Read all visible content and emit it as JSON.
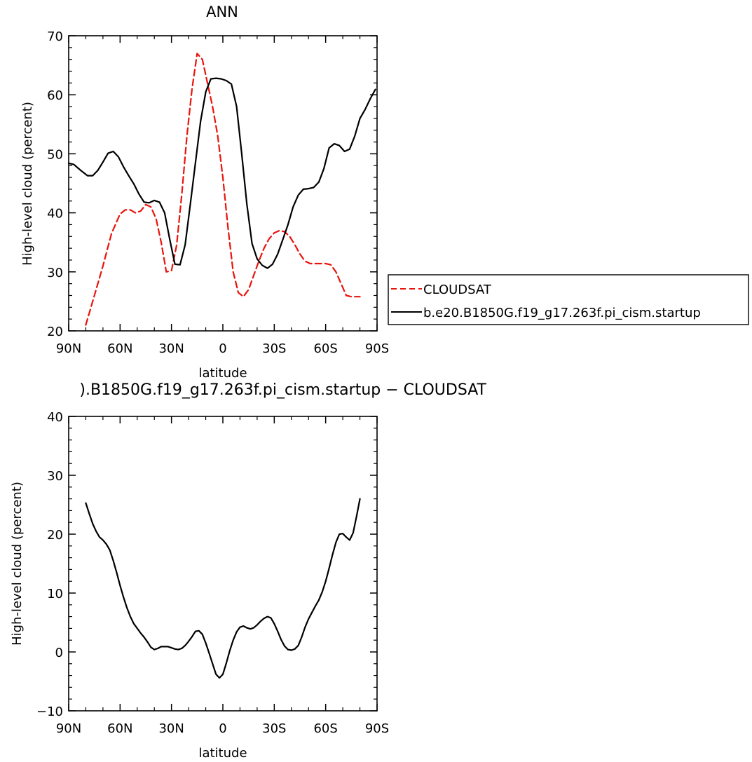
{
  "chart_data": [
    {
      "type": "line",
      "title": "ANN",
      "xlabel": "latitude",
      "ylabel": "High-level cloud (percent)",
      "xlim": [
        90,
        -90
      ],
      "ylim": [
        20,
        70
      ],
      "x_ticks": [
        90,
        60,
        30,
        0,
        -30,
        -60,
        -90
      ],
      "x_tick_labels": [
        "90N",
        "60N",
        "30N",
        "0",
        "30S",
        "60S",
        "90S"
      ],
      "y_ticks": [
        20,
        30,
        40,
        50,
        60,
        70
      ],
      "y_tick_labels": [
        "20",
        "30",
        "40",
        "50",
        "60",
        "70"
      ],
      "legend_position": "right",
      "series": [
        {
          "name": "CLOUDSAT",
          "color": "#e8140c",
          "dash": "dashed",
          "x": [
            80,
            75,
            70,
            65,
            60,
            57,
            54,
            51,
            48,
            45,
            42,
            39,
            36,
            33,
            30,
            27,
            24,
            21,
            18,
            15,
            12,
            9,
            6,
            3,
            0,
            -3,
            -6,
            -9,
            -12,
            -15,
            -18,
            -21,
            -24,
            -27,
            -30,
            -33,
            -36,
            -39,
            -42,
            -45,
            -48,
            -51,
            -54,
            -57,
            -60,
            -63,
            -66,
            -69,
            -72,
            -75,
            -78,
            -80
          ],
          "values": [
            21,
            26,
            31,
            36.5,
            39.8,
            40.5,
            40.5,
            40,
            40.3,
            41.4,
            41,
            39,
            35,
            30,
            30.2,
            34.5,
            43,
            53,
            61,
            67,
            66,
            62,
            58,
            53,
            46,
            37.5,
            30,
            26.5,
            25.8,
            27,
            29.4,
            31.8,
            34,
            35.6,
            36.6,
            37,
            36.8,
            36,
            34.6,
            33,
            31.8,
            31.4,
            31.4,
            31.4,
            31.4,
            31.2,
            30,
            28,
            26,
            25.8,
            25.8,
            25.8
          ]
        },
        {
          "name": "b.e20.B1850G.f19_g17.263f.pi_cism.startup",
          "color": "#000000",
          "dash": "solid",
          "x": [
            90,
            87,
            83,
            79,
            76,
            73,
            70,
            67,
            64,
            61,
            58,
            55,
            52,
            49,
            46,
            43,
            40,
            37,
            34,
            31,
            28,
            25,
            22,
            19,
            16,
            13,
            10,
            7,
            4,
            1,
            -2,
            -5,
            -8,
            -11,
            -14,
            -17,
            -20,
            -23,
            -26,
            -29,
            -32,
            -35,
            -38,
            -41,
            -44,
            -47,
            -50,
            -53,
            -56,
            -59,
            -62,
            -65,
            -68,
            -71,
            -74,
            -77,
            -80,
            -83,
            -86,
            -89
          ],
          "values": [
            48.4,
            48.2,
            47.2,
            46.3,
            46.3,
            47.2,
            48.6,
            50.1,
            50.4,
            49.5,
            47.8,
            46.3,
            44.9,
            43.2,
            41.8,
            41.7,
            42.1,
            41.8,
            40,
            35.5,
            31.3,
            31.2,
            34.6,
            41.5,
            48.5,
            55.5,
            60.5,
            62.7,
            62.8,
            62.7,
            62.4,
            61.8,
            58,
            50,
            41.5,
            34.8,
            32.2,
            31.1,
            30.6,
            31.3,
            33,
            35.5,
            38,
            41,
            43,
            44,
            44.1,
            44.3,
            45.2,
            47.5,
            51,
            51.7,
            51.4,
            50.4,
            50.8,
            53,
            56,
            57.5,
            59.3,
            60.9
          ]
        }
      ]
    },
    {
      "type": "line",
      "title": ").B1850G.f19_g17.263f.pi_cism.startup  −  CLOUDSAT",
      "xlabel": "latitude",
      "ylabel": "High-level cloud (percent)",
      "xlim": [
        90,
        -90
      ],
      "ylim": [
        -10,
        40
      ],
      "x_ticks": [
        90,
        60,
        30,
        0,
        -30,
        -60,
        -90
      ],
      "x_tick_labels": [
        "90N",
        "60N",
        "30N",
        "0",
        "30S",
        "60S",
        "90S"
      ],
      "y_ticks": [
        -10,
        0,
        10,
        20,
        30,
        40
      ],
      "y_tick_labels": [
        "−10",
        "0",
        "10",
        "20",
        "30",
        "40"
      ],
      "series": [
        {
          "color": "#000000",
          "dash": "solid",
          "x": [
            80,
            78,
            76,
            74,
            72,
            70,
            68,
            66,
            64,
            62,
            60,
            58,
            56,
            54,
            52,
            50,
            48,
            46,
            44,
            42,
            40,
            38,
            36,
            34,
            32,
            30,
            28,
            26,
            24,
            22,
            20,
            18,
            16,
            14,
            12,
            10,
            8,
            6,
            4,
            2,
            0,
            -2,
            -4,
            -6,
            -8,
            -10,
            -12,
            -14,
            -16,
            -18,
            -20,
            -22,
            -24,
            -26,
            -28,
            -30,
            -32,
            -34,
            -36,
            -38,
            -40,
            -42,
            -44,
            -46,
            -48,
            -50,
            -52,
            -54,
            -56,
            -58,
            -60,
            -62,
            -64,
            -66,
            -68,
            -70,
            -72,
            -74,
            -76,
            -78,
            -80
          ],
          "values": [
            25.3,
            23.5,
            21.8,
            20.5,
            19.5,
            19.0,
            18.3,
            17.3,
            15.5,
            13.5,
            11.3,
            9.3,
            7.5,
            6.0,
            4.8,
            4.0,
            3.2,
            2.5,
            1.7,
            0.8,
            0.4,
            0.6,
            0.9,
            0.9,
            0.9,
            0.7,
            0.5,
            0.4,
            0.6,
            1.1,
            1.8,
            2.6,
            3.5,
            3.6,
            3.0,
            1.5,
            -0.2,
            -2.0,
            -3.8,
            -4.4,
            -3.8,
            -1.9,
            0.2,
            2.0,
            3.4,
            4.2,
            4.4,
            4.1,
            3.9,
            4.1,
            4.6,
            5.2,
            5.7,
            6.0,
            5.8,
            4.8,
            3.5,
            2.1,
            1.0,
            0.4,
            0.3,
            0.5,
            1.1,
            2.5,
            4.2,
            5.6,
            6.7,
            7.8,
            8.8,
            10.2,
            12.0,
            14.2,
            16.5,
            18.6,
            20.0,
            20.1,
            19.5,
            19.0,
            20.2,
            23.0,
            26.0
          ]
        }
      ]
    }
  ]
}
